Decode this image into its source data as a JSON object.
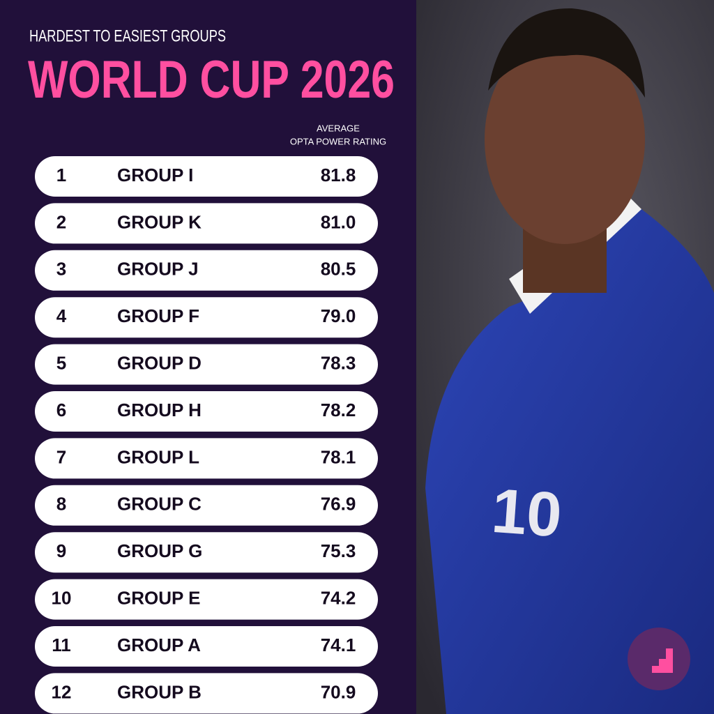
{
  "header": {
    "subtitle": "HARDEST TO EASIEST GROUPS",
    "title": "WORLD CUP 2026"
  },
  "table": {
    "column_header": [
      "AVERAGE",
      "OPTA POWER RATING"
    ],
    "rows": [
      [
        1,
        "GROUP I",
        "81.8"
      ],
      [
        2,
        "GROUP K",
        "81.0"
      ],
      [
        3,
        "GROUP J",
        "80.5"
      ],
      [
        4,
        "GROUP F",
        "79.0"
      ],
      [
        5,
        "GROUP D",
        "78.3"
      ],
      [
        6,
        "GROUP H",
        "78.2"
      ],
      [
        7,
        "GROUP L",
        "78.1"
      ],
      [
        8,
        "GROUP C",
        "76.9"
      ],
      [
        9,
        "GROUP G",
        "75.3"
      ],
      [
        10,
        "GROUP E",
        "74.2"
      ],
      [
        11,
        "GROUP A",
        "74.1"
      ],
      [
        12,
        "GROUP B",
        "70.9"
      ]
    ]
  }
}
